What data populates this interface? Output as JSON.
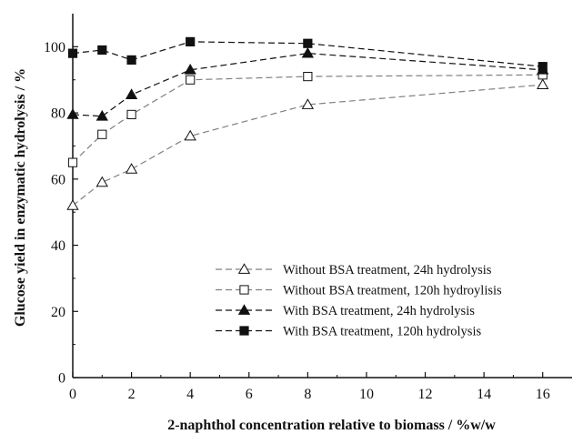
{
  "chart_data": {
    "type": "line",
    "title": "",
    "xlabel": "2-naphthol concentration relative to biomass / %w/w",
    "ylabel": "Glucose yield in enzymatic hydrolysis / %",
    "xlim": [
      0,
      17
    ],
    "ylim": [
      0,
      110
    ],
    "xticks": [
      0,
      2,
      4,
      6,
      8,
      10,
      12,
      14,
      16
    ],
    "yticks": [
      0,
      20,
      40,
      60,
      80,
      100
    ],
    "grid": false,
    "legend_position": "bottom-right",
    "series": [
      {
        "name": "Without BSA treatment, 24h hydrolysis",
        "marker": "triangle-open",
        "color": "#808080",
        "x": [
          0,
          1,
          2,
          4,
          8,
          16
        ],
        "y": [
          52,
          59,
          63,
          73,
          82.5,
          88.5
        ]
      },
      {
        "name": "Without BSA treatment, 120h hydroylisis",
        "marker": "square-open",
        "color": "#808080",
        "x": [
          0,
          1,
          2,
          4,
          8,
          16
        ],
        "y": [
          65,
          73.5,
          79.5,
          90,
          91,
          91.5
        ]
      },
      {
        "name": "With BSA treatment, 24h hydrolysis",
        "marker": "triangle-filled",
        "color": "#111111",
        "x": [
          0,
          1,
          2,
          4,
          8,
          16
        ],
        "y": [
          79.5,
          79,
          85.5,
          93,
          98,
          93
        ]
      },
      {
        "name": "With BSA treatment, 120h hydrolysis",
        "marker": "square-filled",
        "color": "#111111",
        "x": [
          0,
          1,
          2,
          4,
          8,
          16
        ],
        "y": [
          98,
          99,
          96,
          101.5,
          101,
          94
        ]
      }
    ]
  }
}
